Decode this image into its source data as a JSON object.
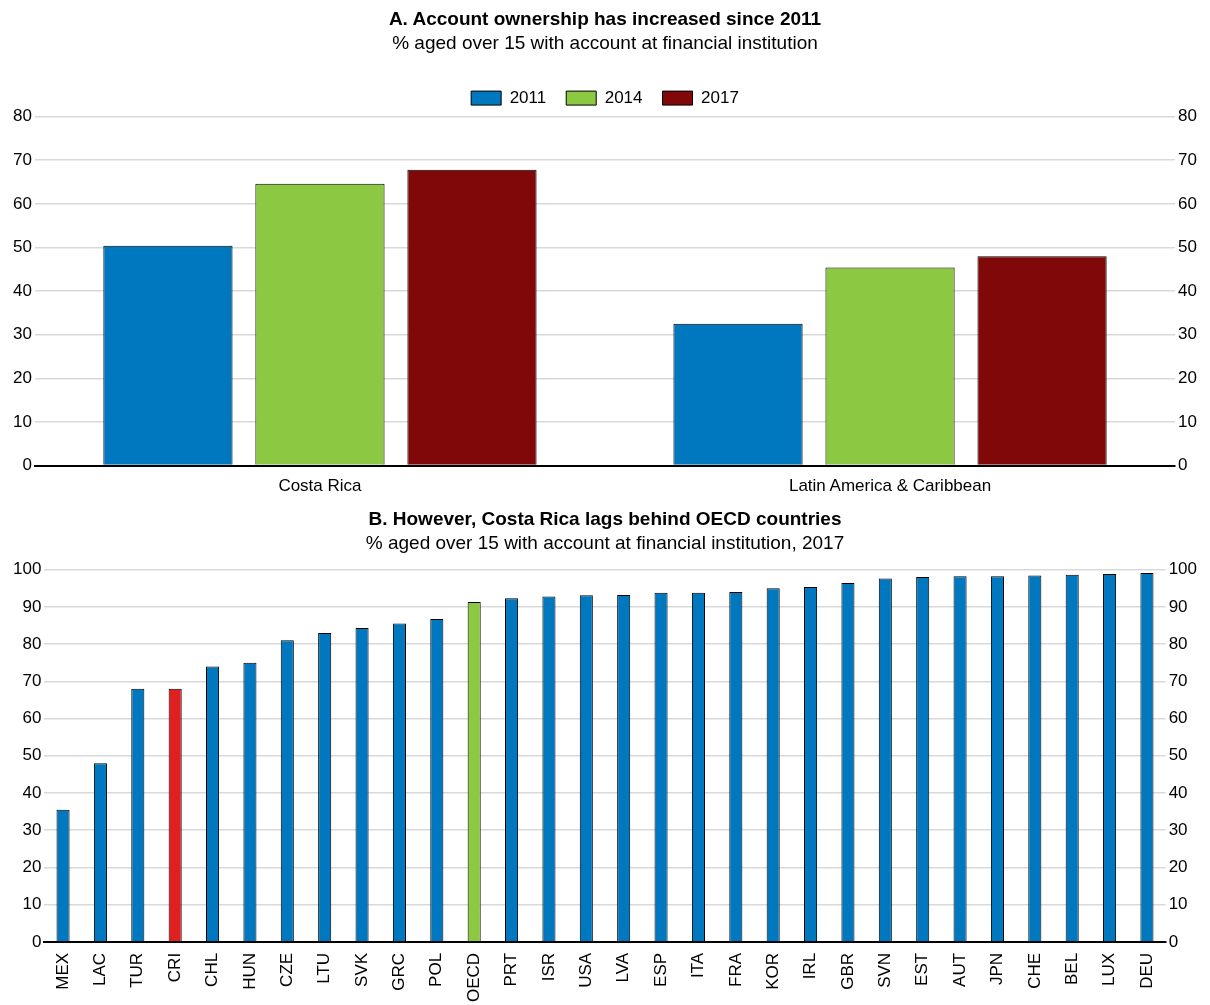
{
  "chart_data": [
    {
      "type": "bar",
      "title": "A. Account ownership has increased since 2011",
      "subtitle": "% aged over 15 with account at financial institution",
      "categories": [
        "Costa Rica",
        "Latin America & Caribbean"
      ],
      "series": [
        {
          "name": "2011",
          "color": "#0078c0",
          "values": [
            50.4,
            32.5
          ]
        },
        {
          "name": "2014",
          "color": "#8cc841",
          "values": [
            64.6,
            45.4
          ]
        },
        {
          "name": "2017",
          "color": "#800808",
          "values": [
            67.8,
            48.0
          ]
        }
      ],
      "ylim": [
        0,
        80
      ],
      "yticks": [
        0,
        10,
        20,
        30,
        40,
        50,
        60,
        70,
        80
      ],
      "y2lim": [
        0,
        80
      ],
      "y2ticks": [
        0,
        10,
        20,
        30,
        40,
        50,
        60,
        70,
        80
      ],
      "grid": "y",
      "legend": "top"
    },
    {
      "type": "bar",
      "title": "B. However, Costa Rica lags behind OECD countries",
      "subtitle": "% aged over 15 with account at financial institution, 2017",
      "categories": [
        "MEX",
        "LAC",
        "TUR",
        "CRI",
        "CHL",
        "HUN",
        "CZE",
        "LTU",
        "SVK",
        "GRC",
        "POL",
        "OECD",
        "PRT",
        "ISR",
        "USA",
        "LVA",
        "ESP",
        "ITA",
        "FRA",
        "KOR",
        "IRL",
        "GBR",
        "SVN",
        "EST",
        "AUT",
        "JPN",
        "CHE",
        "BEL",
        "LUX",
        "DEU"
      ],
      "series": [
        {
          "colors": [
            "#0078c0",
            "#0078c0",
            "#0078c0",
            "#e02020",
            "#0078c0",
            "#0078c0",
            "#0078c0",
            "#0078c0",
            "#0078c0",
            "#0078c0",
            "#0078c0",
            "#8cc841",
            "#0078c0",
            "#0078c0",
            "#0078c0",
            "#0078c0",
            "#0078c0",
            "#0078c0",
            "#0078c0",
            "#0078c0",
            "#0078c0",
            "#0078c0",
            "#0078c0",
            "#0078c0",
            "#0078c0",
            "#0078c0",
            "#0078c0",
            "#0078c0",
            "#0078c0",
            "#0078c0"
          ],
          "values": [
            35.5,
            48.0,
            68.0,
            68.0,
            74.0,
            75.0,
            81.0,
            83.0,
            84.3,
            85.5,
            86.7,
            91.3,
            92.3,
            92.8,
            93.1,
            93.2,
            93.8,
            93.8,
            94.0,
            95.0,
            95.3,
            96.4,
            97.6,
            98.0,
            98.2,
            98.2,
            98.4,
            98.6,
            98.8,
            99.1
          ]
        }
      ],
      "ylim": [
        0,
        100
      ],
      "yticks": [
        0,
        10,
        20,
        30,
        40,
        50,
        60,
        70,
        80,
        90,
        100
      ],
      "y2lim": [
        0,
        100
      ],
      "y2ticks": [
        0,
        10,
        20,
        30,
        40,
        50,
        60,
        70,
        80,
        90,
        100
      ],
      "grid": "y"
    }
  ]
}
